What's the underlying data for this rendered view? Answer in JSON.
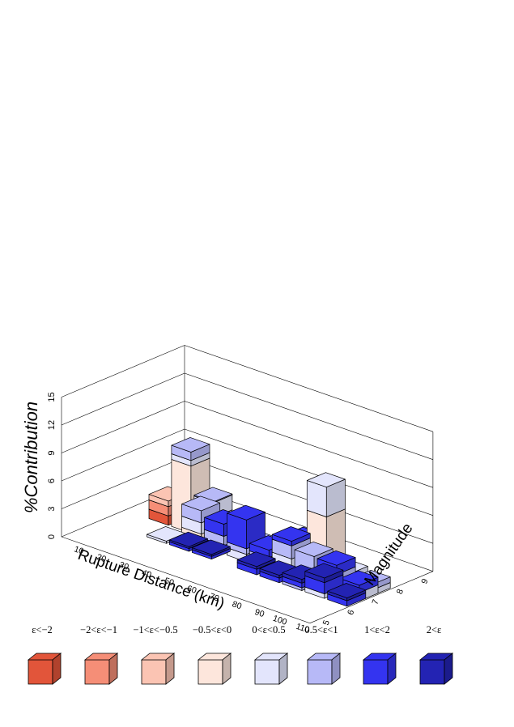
{
  "chart_data": {
    "type": "bar3d",
    "zlabel": "%Contribution",
    "xlabel": "Rupture Distance (km)",
    "ylabel": "Magnitude",
    "z_ticks": [
      "0",
      "3",
      "6",
      "9",
      "12",
      "15"
    ],
    "x_ticks": [
      "10",
      "20",
      "30",
      "40",
      "50",
      "60",
      "70",
      "80",
      "90",
      "100",
      "110"
    ],
    "y_ticks": [
      "5",
      "6",
      "7",
      "8",
      "9"
    ],
    "zlim": [
      0,
      15
    ],
    "xlim": [
      0,
      110
    ],
    "ylim": [
      4.5,
      9.5
    ],
    "legend": [
      {
        "label": "ε<−2",
        "color": "#e2553a"
      },
      {
        "label": "−2<ε<−1",
        "color": "#f58e77"
      },
      {
        "label": "−1<ε<−0.5",
        "color": "#fbc4b3"
      },
      {
        "label": "−0.5<ε<0",
        "color": "#fde6dc"
      },
      {
        "label": "0<ε<0.5",
        "color": "#e3e5fc"
      },
      {
        "label": "0.5<ε<1",
        "color": "#b7b9f7"
      },
      {
        "label": "1<ε<2",
        "color": "#3434f0"
      },
      {
        "label": "2<ε",
        "color": "#2323b3"
      }
    ],
    "bars": [
      {
        "distance": 15,
        "magnitude": 7.45,
        "segments": [
          1,
          1,
          0.6,
          0,
          0,
          0,
          0,
          0
        ]
      },
      {
        "distance": 25,
        "magnitude": 7.45,
        "segments": [
          0,
          0,
          0,
          7.2,
          0.6,
          0.9,
          0,
          0
        ]
      },
      {
        "distance": 25,
        "magnitude": 6.45,
        "segments": [
          0,
          0,
          0,
          0,
          0.25,
          0,
          0,
          0
        ]
      },
      {
        "distance": 35,
        "magnitude": 7.45,
        "segments": [
          0,
          0,
          0,
          2.5,
          1.6,
          0.1,
          0,
          0
        ]
      },
      {
        "distance": 35,
        "magnitude": 6.95,
        "segments": [
          0,
          0,
          0,
          1.3,
          1.2,
          1.3,
          0,
          0
        ]
      },
      {
        "distance": 35,
        "magnitude": 6.45,
        "segments": [
          0,
          0,
          0,
          0,
          0,
          0,
          0.3,
          0.2
        ]
      },
      {
        "distance": 45,
        "magnitude": 7.45,
        "segments": [
          0,
          0,
          0,
          0.4,
          1.2,
          1.0,
          0,
          0
        ]
      },
      {
        "distance": 45,
        "magnitude": 6.95,
        "segments": [
          0,
          0,
          0,
          0,
          0.9,
          1.0,
          1.3,
          0
        ]
      },
      {
        "distance": 45,
        "magnitude": 6.45,
        "segments": [
          0,
          0,
          0,
          0,
          0,
          0,
          0.3,
          0.2
        ]
      },
      {
        "distance": 55,
        "magnitude": 7.45,
        "segments": [
          0,
          0,
          0,
          0.3,
          0.4,
          0.5,
          0,
          0
        ]
      },
      {
        "distance": 55,
        "magnitude": 6.95,
        "segments": [
          0,
          0,
          0,
          0,
          0.8,
          0.6,
          3.1,
          0
        ]
      },
      {
        "distance": 65,
        "magnitude": 7.45,
        "segments": [
          0,
          0,
          0,
          0.2,
          0.5,
          0.3,
          0,
          0
        ]
      },
      {
        "distance": 65,
        "magnitude": 6.95,
        "segments": [
          0,
          0,
          0,
          0,
          0.8,
          0.5,
          0.8,
          0
        ]
      },
      {
        "distance": 65,
        "magnitude": 6.45,
        "segments": [
          0,
          0,
          0,
          0,
          0,
          0,
          0.6,
          0.3
        ]
      },
      {
        "distance": 75,
        "magnitude": 7.45,
        "segments": [
          0,
          0,
          0,
          0,
          2.1,
          0.7,
          0.5,
          0
        ]
      },
      {
        "distance": 75,
        "magnitude": 6.95,
        "segments": [
          0,
          0,
          0,
          0,
          2.0,
          1.4,
          0.5,
          0
        ]
      },
      {
        "distance": 75,
        "magnitude": 6.45,
        "segments": [
          0,
          0,
          0,
          0,
          0,
          0,
          0.5,
          0.3
        ]
      },
      {
        "distance": 85,
        "magnitude": 7.45,
        "segments": [
          0,
          0,
          0,
          6.8,
          3.2,
          0,
          0,
          0
        ]
      },
      {
        "distance": 85,
        "magnitude": 6.95,
        "segments": [
          0,
          0,
          0,
          0,
          1.0,
          2.1,
          0,
          0
        ]
      },
      {
        "distance": 85,
        "magnitude": 6.45,
        "segments": [
          0,
          0,
          0,
          0,
          0,
          0.3,
          0.5,
          0.4
        ]
      },
      {
        "distance": 95,
        "magnitude": 7.45,
        "segments": [
          0,
          0,
          0,
          0.5,
          1.0,
          0,
          0,
          0
        ]
      },
      {
        "distance": 95,
        "magnitude": 6.95,
        "segments": [
          0,
          0,
          0,
          0,
          0.5,
          1.5,
          1.0,
          0
        ]
      },
      {
        "distance": 95,
        "magnitude": 6.45,
        "segments": [
          0,
          0,
          0,
          0,
          0.5,
          0,
          1.2,
          0.5
        ]
      },
      {
        "distance": 105,
        "magnitude": 7.45,
        "segments": [
          0,
          0,
          0,
          0,
          0.6,
          0.6,
          0,
          0
        ]
      },
      {
        "distance": 105,
        "magnitude": 6.95,
        "segments": [
          0,
          0,
          0,
          0,
          0.9,
          0,
          0.8,
          0
        ]
      },
      {
        "distance": 105,
        "magnitude": 6.45,
        "segments": [
          0,
          0,
          0,
          0,
          0,
          0,
          0.6,
          0.3
        ]
      }
    ]
  }
}
